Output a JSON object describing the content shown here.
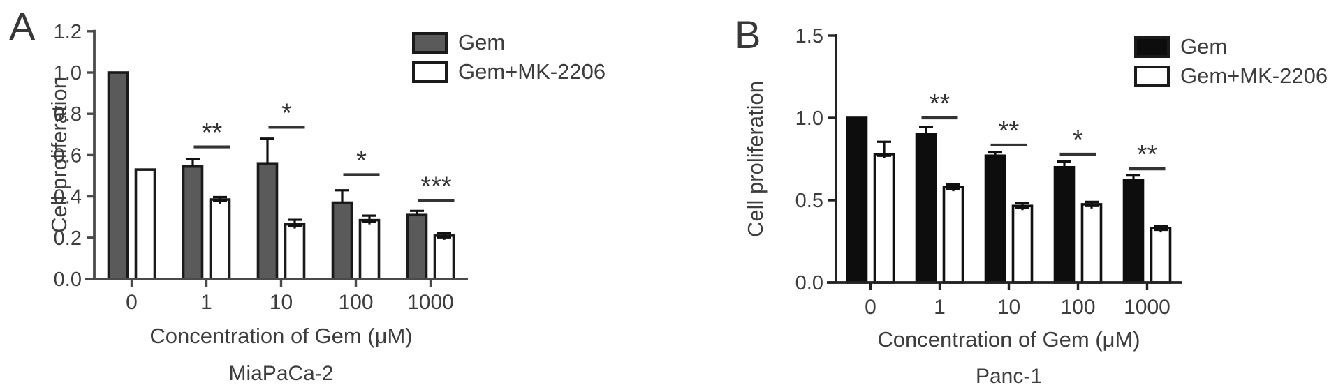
{
  "figure": {
    "description": "Two-panel grouped bar figure of cell proliferation under gemcitabine with or without MK-2206"
  },
  "chart_data": [
    {
      "type": "bar",
      "panel_label": "A",
      "title": "MiaPaCa-2",
      "xlabel": "Concentration of Gem (μM)",
      "ylabel": "Cell proliferation",
      "categories": [
        "0",
        "1",
        "10",
        "100",
        "1000"
      ],
      "ylim": [
        0,
        1.2
      ],
      "ytick_labels": [
        "0.0",
        "0.2",
        "0.4",
        "0.6",
        "0.8",
        "1.0",
        "1.2"
      ],
      "grid": false,
      "legend_position": "top-right",
      "axis_color": "#4a4a4a",
      "text_color": "#3d3d3d",
      "series": [
        {
          "name": "Gem",
          "fill": "#5a5a5a",
          "stroke": "#1a1a1a",
          "values": [
            1.0,
            0.545,
            0.56,
            0.37,
            0.31
          ],
          "errors_up": [
            0,
            0.035,
            0.12,
            0.06,
            0.02
          ]
        },
        {
          "name": "Gem+MK-2206",
          "fill": "#ffffff",
          "stroke": "#1a1a1a",
          "values": [
            0.53,
            0.385,
            0.265,
            0.285,
            0.21
          ],
          "errors_up": [
            0,
            0.012,
            0.022,
            0.022,
            0.012
          ]
        }
      ],
      "significance": [
        {
          "category": "1",
          "stars": "**",
          "line_y": 0.64
        },
        {
          "category": "10",
          "stars": "*",
          "line_y": 0.735
        },
        {
          "category": "100",
          "stars": "*",
          "line_y": 0.505
        },
        {
          "category": "1000",
          "stars": "***",
          "line_y": 0.38
        }
      ]
    },
    {
      "type": "bar",
      "panel_label": "B",
      "title": "Panc-1",
      "xlabel": "Concentration of Gem (μM)",
      "ylabel": "Cell proliferation",
      "categories": [
        "0",
        "1",
        "10",
        "100",
        "1000"
      ],
      "ylim": [
        0,
        1.5
      ],
      "ytick_labels": [
        "0.0",
        "0.5",
        "1.0",
        "1.5"
      ],
      "grid": false,
      "legend_position": "top-right",
      "axis_color": "#222222",
      "text_color": "#3d3d3d",
      "series": [
        {
          "name": "Gem",
          "fill": "#0d0d0d",
          "stroke": "#0d0d0d",
          "values": [
            1.0,
            0.9,
            0.77,
            0.7,
            0.62
          ],
          "errors_up": [
            0,
            0.045,
            0.02,
            0.035,
            0.03
          ]
        },
        {
          "name": "Gem+MK-2206",
          "fill": "#ffffff",
          "stroke": "#111111",
          "values": [
            0.78,
            0.58,
            0.465,
            0.475,
            0.33
          ],
          "errors_up": [
            0.075,
            0.015,
            0.02,
            0.015,
            0.015
          ]
        }
      ],
      "significance": [
        {
          "category": "1",
          "stars": "**",
          "line_y": 1.0
        },
        {
          "category": "10",
          "stars": "**",
          "line_y": 0.835
        },
        {
          "category": "100",
          "stars": "*",
          "line_y": 0.78
        },
        {
          "category": "1000",
          "stars": "**",
          "line_y": 0.69
        }
      ]
    }
  ]
}
